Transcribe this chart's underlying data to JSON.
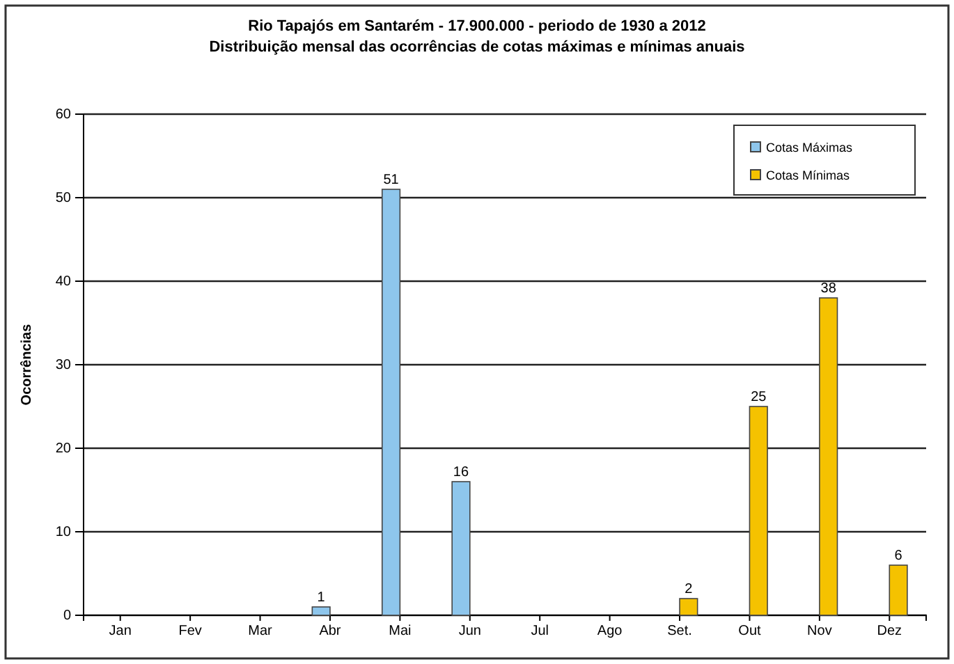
{
  "chart_data": {
    "type": "bar",
    "title": "Rio Tapajós em Santarém - 17.900.000 - periodo de 1930 a 2012",
    "subtitle": "Distribuição mensal das ocorrências de cotas máximas e mínimas anuais",
    "ylabel": "Ocorrências",
    "categories": [
      "Jan",
      "Fev",
      "Mar",
      "Abr",
      "Mai",
      "Jun",
      "Jul",
      "Ago",
      "Set.",
      "Out",
      "Nov",
      "Dez"
    ],
    "series": [
      {
        "name": "Cotas Máximas",
        "color": "#8ec6ec",
        "values": [
          0,
          0,
          0,
          1,
          51,
          16,
          0,
          0,
          0,
          0,
          0,
          0
        ],
        "value_labels": [
          null,
          null,
          null,
          "1",
          "51",
          "16",
          null,
          null,
          null,
          null,
          null,
          null
        ]
      },
      {
        "name": "Cotas Mínimas",
        "color": "#f5c200",
        "values": [
          0,
          0,
          0,
          0,
          0,
          0,
          0,
          0,
          2,
          25,
          38,
          6
        ],
        "value_labels": [
          null,
          null,
          null,
          null,
          null,
          null,
          null,
          null,
          "2",
          "25",
          "38",
          "6"
        ]
      }
    ],
    "ylim": [
      0,
      60
    ],
    "yticks": [
      0,
      10,
      20,
      30,
      40,
      50,
      60
    ],
    "grid": "y",
    "legend": "top right"
  }
}
